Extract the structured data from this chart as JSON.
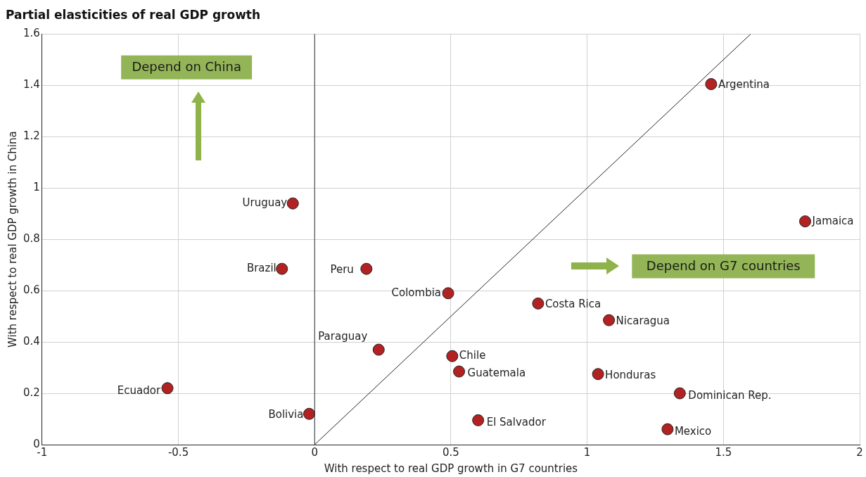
{
  "chart_data": {
    "type": "scatter",
    "title": "Partial elasticities of real GDP growth",
    "xlabel": "With respect to real GDP growth in G7 countries",
    "ylabel": "With respect to real GDP growth in China",
    "xlim": [
      -1,
      2
    ],
    "xticks": [
      -1,
      -0.5,
      0,
      0.5,
      1,
      1.5,
      2
    ],
    "ylim": [
      0,
      1.6
    ],
    "yticks": [
      0,
      0.2,
      0.4,
      0.6,
      0.8,
      1,
      1.2,
      1.4,
      1.6
    ],
    "grid": true,
    "legend": false,
    "marker": "circle",
    "annotations": [
      "Depend on China",
      "Depend on G7 countries"
    ],
    "ref_lines": [
      {
        "axis": "x",
        "value": 0,
        "color": "#333333"
      }
    ],
    "series": [
      {
        "name": "Uruguay",
        "color": "#b22222",
        "x": [
          -0.08
        ],
        "values": [
          0.94
        ]
      },
      {
        "name": "Brazil",
        "color": "#b22222",
        "x": [
          -0.12
        ],
        "values": [
          0.685
        ]
      },
      {
        "name": "Ecuador",
        "color": "#b22222",
        "x": [
          -0.54
        ],
        "values": [
          0.22
        ]
      },
      {
        "name": "Bolivia",
        "color": "#b22222",
        "x": [
          -0.02
        ],
        "values": [
          0.12
        ]
      },
      {
        "name": "Peru",
        "color": "#b22222",
        "x": [
          0.19
        ],
        "values": [
          0.685
        ]
      },
      {
        "name": "Paraguay",
        "color": "#b22222",
        "x": [
          0.235
        ],
        "values": [
          0.37
        ]
      },
      {
        "name": "Colombia",
        "color": "#b22222",
        "x": [
          0.49
        ],
        "values": [
          0.59
        ]
      },
      {
        "name": "Chile",
        "color": "#b22222",
        "x": [
          0.505
        ],
        "values": [
          0.345
        ]
      },
      {
        "name": "Guatemala",
        "color": "#b22222",
        "x": [
          0.53
        ],
        "values": [
          0.285
        ]
      },
      {
        "name": "El Salvador",
        "color": "#b22222",
        "x": [
          0.6
        ],
        "values": [
          0.095
        ]
      },
      {
        "name": "Costa Rica",
        "color": "#b22222",
        "x": [
          0.82
        ],
        "values": [
          0.55
        ]
      },
      {
        "name": "Nicaragua",
        "color": "#b22222",
        "x": [
          1.08
        ],
        "values": [
          0.485
        ]
      },
      {
        "name": "Honduras",
        "color": "#b22222",
        "x": [
          1.04
        ],
        "values": [
          0.275
        ]
      },
      {
        "name": "Dominican Rep.",
        "color": "#b22222",
        "x": [
          1.34
        ],
        "values": [
          0.2
        ]
      },
      {
        "name": "Mexico",
        "color": "#b22222",
        "x": [
          1.295
        ],
        "values": [
          0.06
        ]
      },
      {
        "name": "Argentina",
        "color": "#b22222",
        "x": [
          1.455
        ],
        "values": [
          1.405
        ]
      },
      {
        "name": "Jamaica",
        "color": "#b22222",
        "x": [
          1.8
        ],
        "values": [
          0.87
        ]
      },
      {
        "type": "line",
        "marker": "none",
        "color": "#222222",
        "x": [
          0,
          1.6
        ],
        "values": [
          0,
          1.6
        ]
      }
    ]
  }
}
